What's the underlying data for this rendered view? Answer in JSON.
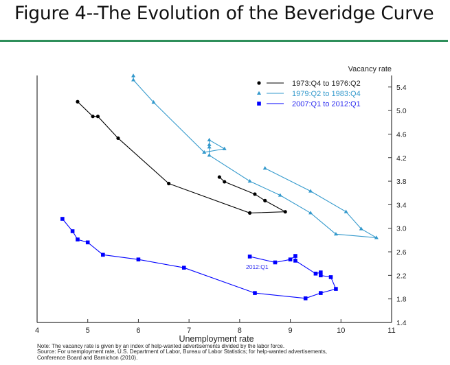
{
  "title": "Figure 4--The Evolution of the Beveridge Curve",
  "chart_data": {
    "type": "line",
    "xlabel": "Unemployment rate",
    "ylabel": "Vacancy rate",
    "xlim": [
      4,
      11
    ],
    "ylim": [
      1.4,
      5.6
    ],
    "x_ticks": [
      "4",
      "5",
      "6",
      "7",
      "8",
      "9",
      "10",
      "11"
    ],
    "y_ticks": [
      "1.4",
      "1.8",
      "2.2",
      "2.6",
      "3.0",
      "3.4",
      "3.8",
      "4.2",
      "4.6",
      "5.0",
      "5.4"
    ],
    "y_axis_side": "right",
    "grid": false,
    "legend_position": "top-right",
    "annotation": "2012:Q1",
    "series": [
      {
        "name": "1973:Q4 to 1976:Q2",
        "color": "#000000",
        "marker": "circle",
        "points": [
          [
            4.8,
            5.15
          ],
          [
            5.1,
            4.9
          ],
          [
            5.2,
            4.9
          ],
          [
            5.6,
            4.53
          ],
          [
            6.6,
            3.76
          ],
          [
            8.2,
            3.26
          ],
          [
            8.9,
            3.28
          ],
          [
            8.5,
            3.47
          ],
          [
            8.3,
            3.58
          ],
          [
            7.7,
            3.79
          ],
          [
            7.6,
            3.87
          ]
        ]
      },
      {
        "name": "1979:Q2 to 1983:Q4",
        "color": "#3399cc",
        "marker": "triangle",
        "points": [
          [
            5.9,
            5.59
          ],
          [
            5.9,
            5.52
          ],
          [
            6.3,
            5.14
          ],
          [
            7.3,
            4.29
          ],
          [
            7.7,
            4.35
          ],
          [
            7.4,
            4.5
          ],
          [
            7.4,
            4.42
          ],
          [
            7.4,
            4.38
          ],
          [
            7.4,
            4.24
          ],
          [
            8.2,
            3.8
          ],
          [
            8.8,
            3.56
          ],
          [
            9.4,
            3.26
          ],
          [
            9.9,
            2.9
          ],
          [
            10.7,
            2.84
          ],
          [
            10.4,
            2.99
          ],
          [
            10.1,
            3.28
          ],
          [
            9.4,
            3.63
          ],
          [
            8.5,
            4.02
          ]
        ]
      },
      {
        "name": "2007:Q1 to 2012:Q1",
        "color": "#0000ff",
        "marker": "square",
        "points": [
          [
            4.5,
            3.16
          ],
          [
            4.7,
            2.95
          ],
          [
            4.8,
            2.81
          ],
          [
            5.0,
            2.76
          ],
          [
            5.3,
            2.55
          ],
          [
            6.0,
            2.47
          ],
          [
            6.9,
            2.33
          ],
          [
            8.3,
            1.9
          ],
          [
            9.3,
            1.81
          ],
          [
            9.6,
            1.9
          ],
          [
            9.9,
            1.97
          ],
          [
            9.8,
            2.17
          ],
          [
            9.6,
            2.2
          ],
          [
            9.6,
            2.25
          ],
          [
            9.5,
            2.23
          ],
          [
            9.1,
            2.45
          ],
          [
            9.1,
            2.53
          ],
          [
            9.0,
            2.47
          ],
          [
            8.7,
            2.42
          ],
          [
            8.2,
            2.52
          ]
        ]
      }
    ],
    "notes": [
      "Note:  The vacancy rate is given by an index of help-wanted advertisements divided by the labor force.",
      "Source:  For unemployment rate, U.S. Department of Labor, Bureau of Labor Statistics; for help-wanted advertisements,",
      "Conference Board and Barnichon (2010)."
    ]
  }
}
